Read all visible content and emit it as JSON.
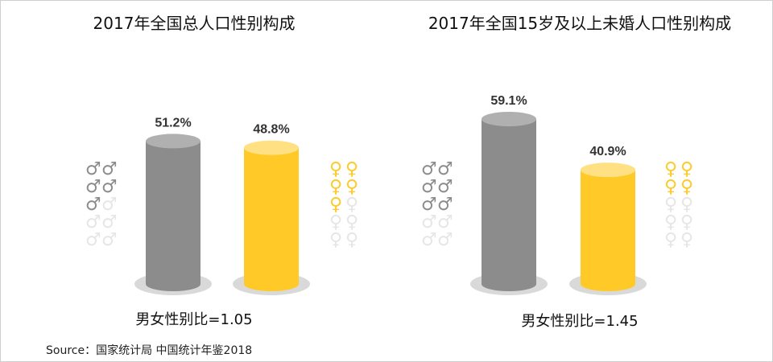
{
  "colors": {
    "male": "#8c8c8c",
    "male_top": "#b0b0b0",
    "female": "#ffca28",
    "female_top": "#ffe082",
    "shadow": "#d9d9d9",
    "icon_faded": "#e6e6e6"
  },
  "icons": {
    "male": "male-symbol-icon",
    "female": "female-symbol-icon"
  },
  "chart_data": [
    {
      "type": "bar",
      "title": "2017年全国总人口性别构成",
      "categories": [
        "男",
        "女"
      ],
      "values": [
        51.2,
        48.8
      ],
      "value_labels": [
        "51.2%",
        "48.8%"
      ],
      "ylim": [
        0,
        100
      ],
      "icon_fill": [
        51.2,
        48.8
      ],
      "ratio_text": "男女性别比=1.05"
    },
    {
      "type": "bar",
      "title": "2017年全国15岁及以上未婚人口性别构成",
      "categories": [
        "男",
        "女"
      ],
      "values": [
        59.1,
        40.9
      ],
      "value_labels": [
        "59.1%",
        "40.9%"
      ],
      "ylim": [
        0,
        100
      ],
      "icon_fill": [
        59.1,
        40.9
      ],
      "ratio_text": "男女性别比=1.45"
    }
  ],
  "source": "Source：国家统计局 中国统计年鉴2018"
}
